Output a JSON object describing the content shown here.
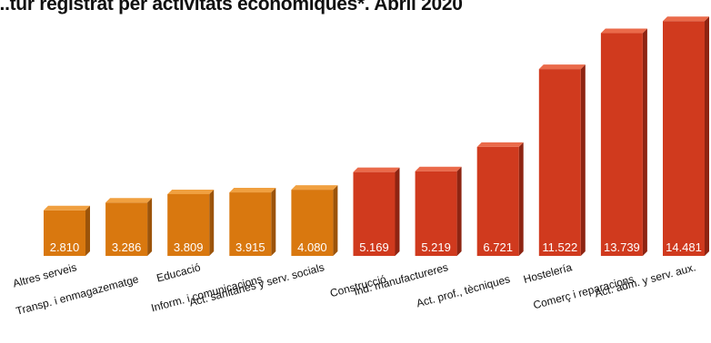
{
  "chart_data": {
    "type": "bar",
    "title": "...tur registrat per activitats econòmiques*. Abril 2020",
    "categories": [
      "Altres serveis",
      "Transp. i enmagazematge",
      "Educació",
      "Inform. i comunicacions",
      "Act. sanitaries y serv. socials",
      "Construcció",
      "Ind. manufactureres",
      "Act. prof., tècniques",
      "Hostelería",
      "Comerç i reparacions",
      "Act. adm. y serv. aux."
    ],
    "values": [
      2810,
      3286,
      3809,
      3915,
      4080,
      5169,
      5219,
      6721,
      11522,
      13739,
      14481
    ],
    "value_labels": [
      "2.810",
      "3.286",
      "3.809",
      "3.915",
      "4.080",
      "5.169",
      "5.219",
      "6.721",
      "11.522",
      "13.739",
      "14.481"
    ],
    "bar_colors": [
      "#d9780f",
      "#d9780f",
      "#d9780f",
      "#d9780f",
      "#d9780f",
      "#d03a1e",
      "#d03a1e",
      "#d03a1e",
      "#d03a1e",
      "#d03a1e",
      "#d03a1e"
    ],
    "ylim": [
      0,
      15000
    ],
    "grid": false,
    "legend": "none"
  },
  "colors": {
    "orange_front": "#d9780f",
    "orange_top": "#f0a040",
    "orange_side": "#9c540a",
    "red_front": "#d03a1e",
    "red_top": "#ea6a4a",
    "red_side": "#8e2412"
  }
}
